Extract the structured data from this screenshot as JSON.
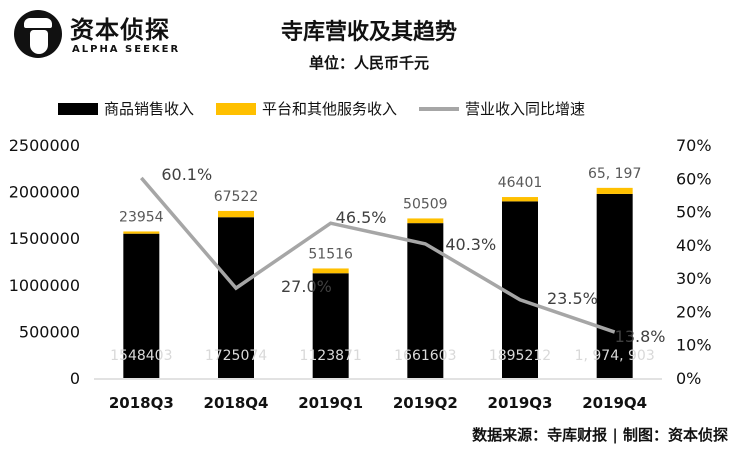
{
  "logo": {
    "name_cn": "资本侦探",
    "name_en": "ALPHA SEEKER"
  },
  "title": "寺库营收及其趋势",
  "subtitle": "单位：人民币千元",
  "source": "数据来源：寺库财报 | 制图：资本侦探",
  "colors": {
    "goods": "#000000",
    "platform": "#FFC000",
    "growth": "#A6A6A6"
  },
  "chart_data": {
    "type": "bar",
    "stacked": true,
    "categories": [
      "2018Q3",
      "2018Q4",
      "2019Q1",
      "2019Q2",
      "2019Q3",
      "2019Q4"
    ],
    "series": [
      {
        "name": "商品销售收入",
        "type": "bar",
        "axis": "left",
        "values": [
          1548403,
          1725074,
          1123871,
          1661603,
          1895212,
          1974903
        ],
        "labels": [
          "1548403",
          "1725074",
          "1123871",
          "1661603",
          "1895212",
          "1, 974, 903"
        ]
      },
      {
        "name": "平台和其他服务收入",
        "type": "bar",
        "axis": "left",
        "values": [
          23954,
          67522,
          51516,
          50509,
          46401,
          65197
        ],
        "labels": [
          "23954",
          "67522",
          "51516",
          "50509",
          "46401",
          "65, 197"
        ]
      },
      {
        "name": "营业收入同比增速",
        "type": "line",
        "axis": "right",
        "values": [
          60.1,
          27.0,
          46.5,
          40.3,
          23.5,
          13.8
        ],
        "labels": [
          "60.1%",
          "27.0%",
          "46.5%",
          "40.3%",
          "23.5%",
          "13.8%"
        ]
      }
    ],
    "ylim": [
      0,
      2500000
    ],
    "yticks": [
      "0",
      "500000",
      "1000000",
      "1500000",
      "2000000",
      "2500000"
    ],
    "y2lim": [
      0,
      70
    ],
    "y2ticks": [
      "0%",
      "10%",
      "20%",
      "30%",
      "40%",
      "50%",
      "60%",
      "70%"
    ],
    "legend": "top",
    "grid": false
  }
}
